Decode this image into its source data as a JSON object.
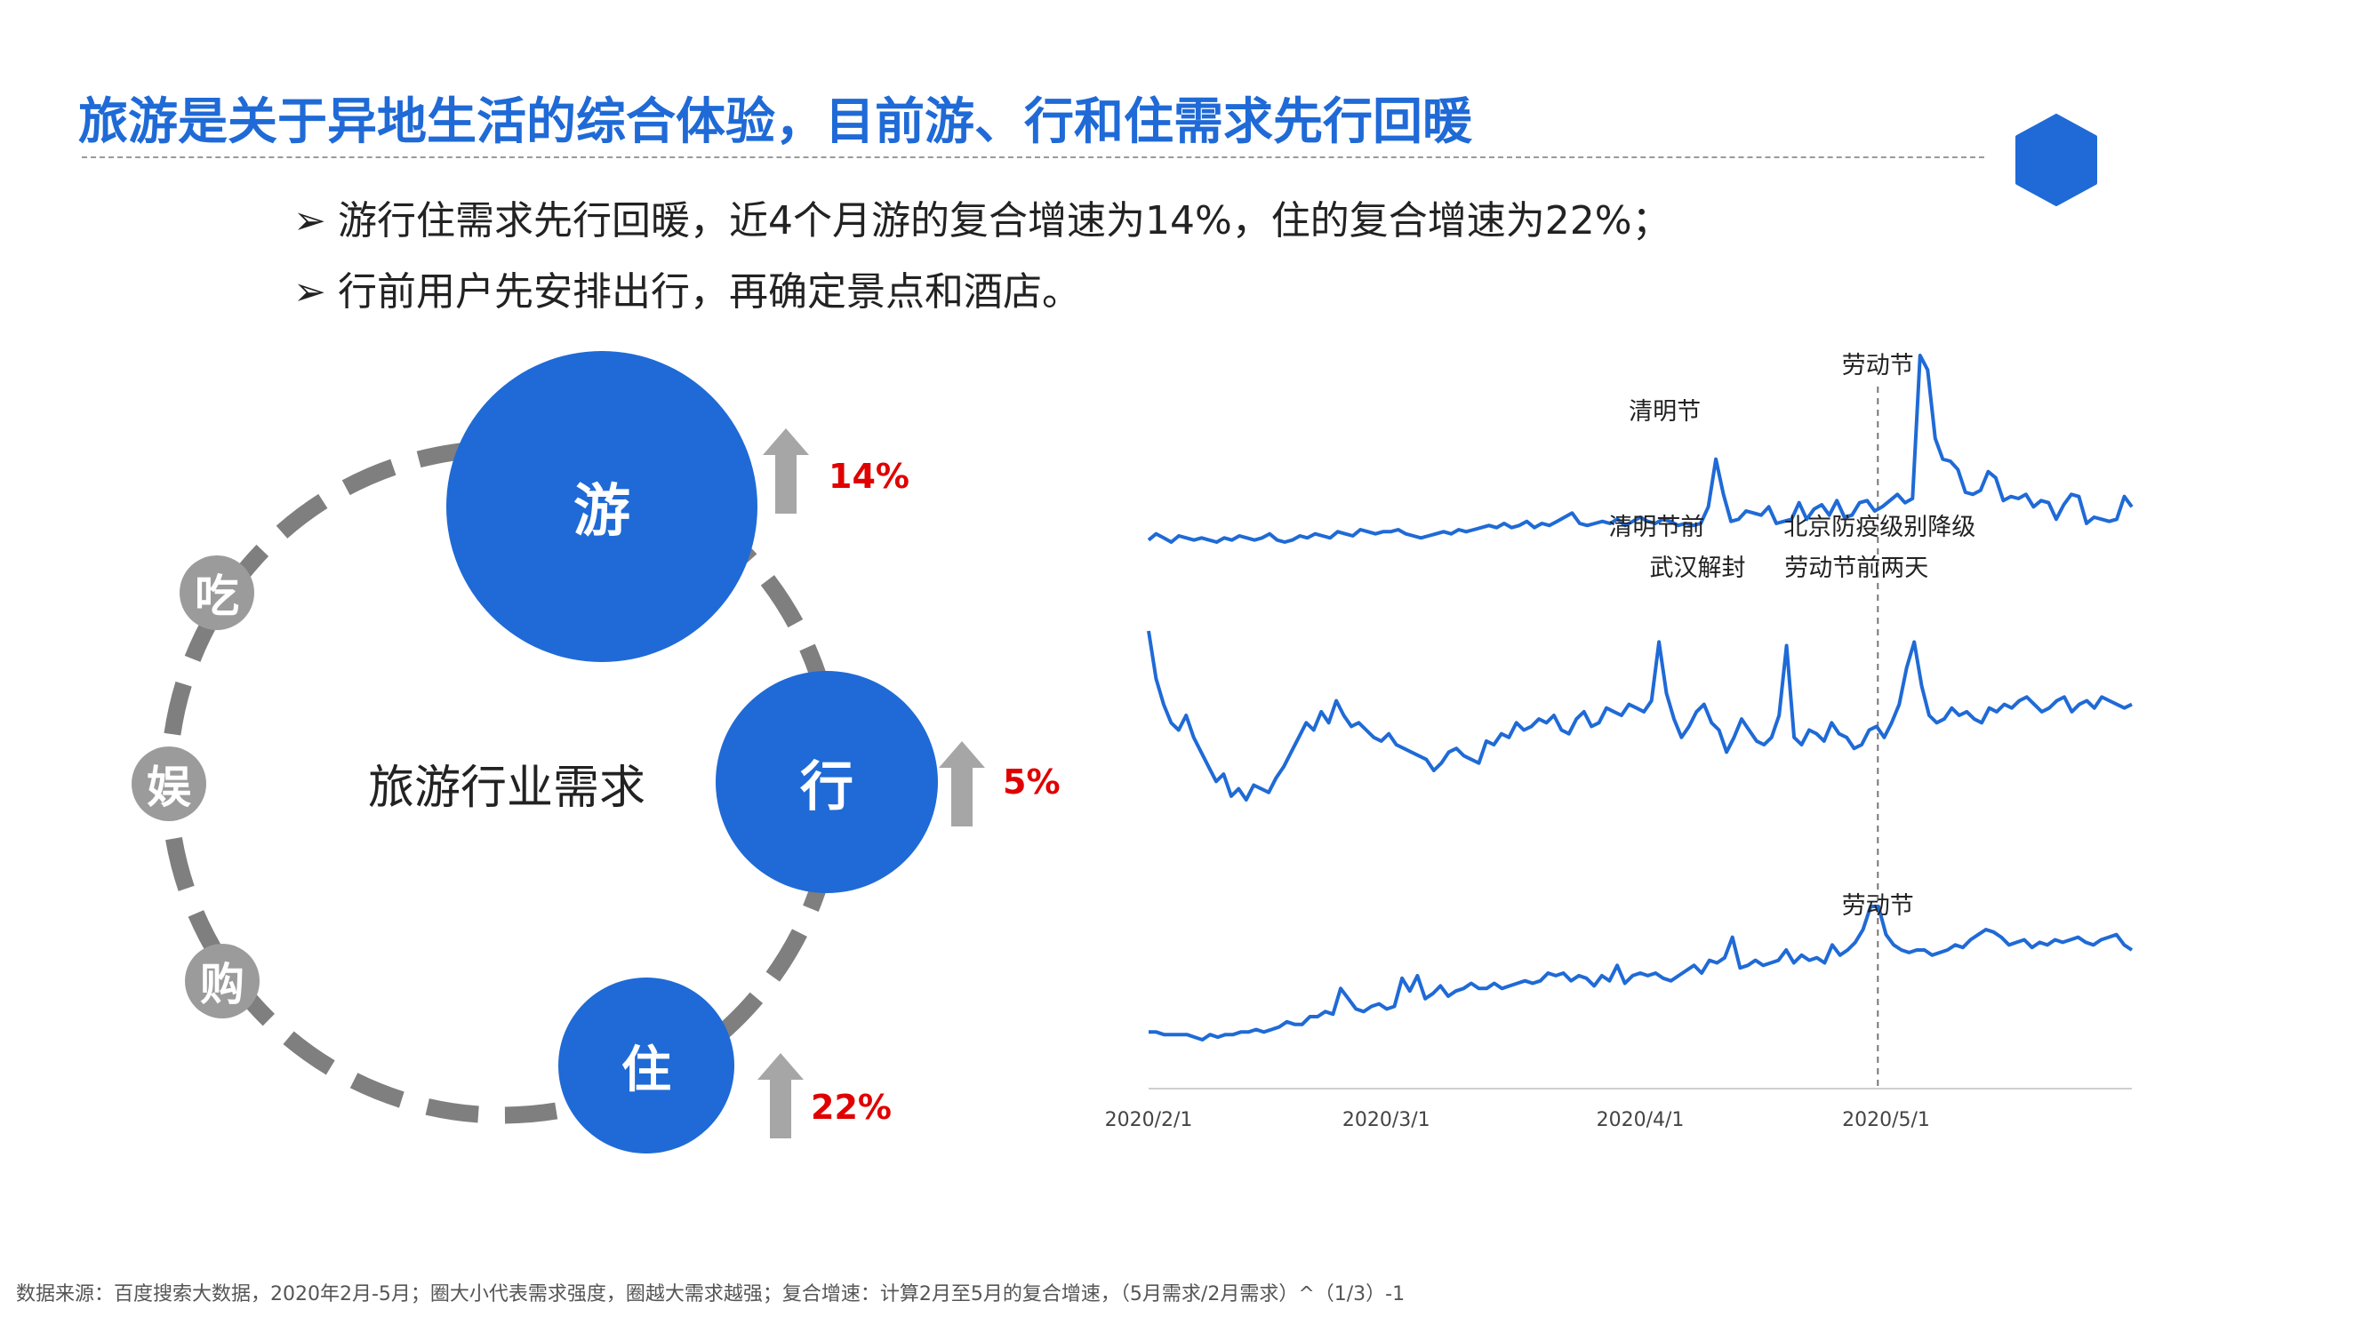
{
  "header": {
    "title": "旅游是关于异地生活的综合体验，目前游、行和住需求先行回暖",
    "logo_icon": "hexagon-icon"
  },
  "bullets": [
    {
      "marker": "➢",
      "text": "游行住需求先行回暖，近4个月游的复合增速为14%，住的复合增速为22%；"
    },
    {
      "marker": "➢",
      "text": "行前用户先安排出行，再确定景点和酒店。"
    }
  ],
  "diagram": {
    "center_label": "旅游行业需求",
    "big_nodes": [
      {
        "label": "游",
        "growth": "14%"
      },
      {
        "label": "行",
        "growth": "5%"
      },
      {
        "label": "住",
        "growth": "22%"
      }
    ],
    "small_nodes": [
      "吃",
      "娱",
      "购"
    ],
    "colors": {
      "big": "#1f6ad6",
      "small": "#9b9b9b",
      "arrow": "#a6a6a6",
      "growth": "#e00000"
    }
  },
  "chart_data": {
    "type": "line",
    "x_start": "2020/2/1",
    "x_end": "2020/5/31",
    "x_ticks": [
      "2020/2/1",
      "2020/3/1",
      "2020/4/1",
      "2020/5/1"
    ],
    "reference_line": {
      "x": "2020/4/30",
      "style": "dashed"
    },
    "line_color": "#1f6ad6",
    "series": [
      {
        "values": [
          6,
          9,
          7,
          5,
          8,
          7,
          6,
          7,
          6,
          5,
          7,
          6,
          8,
          7,
          6,
          7,
          9,
          6,
          5,
          6,
          8,
          7,
          9,
          8,
          7,
          10,
          9,
          8,
          11,
          10,
          9,
          10,
          10,
          11,
          9,
          8,
          7,
          8,
          9,
          10,
          9,
          11,
          10,
          11,
          12,
          13,
          12,
          14,
          12,
          13,
          15,
          12,
          14,
          13,
          15,
          17,
          19,
          14,
          13,
          14,
          15,
          14,
          16,
          13,
          15,
          17,
          15,
          14,
          16,
          15,
          13,
          14,
          13,
          14,
          22,
          45,
          28,
          15,
          16,
          20,
          19,
          18,
          22,
          14,
          15,
          16,
          24,
          16,
          21,
          23,
          18,
          25,
          17,
          18,
          24,
          25,
          20,
          22,
          25,
          28,
          24,
          26,
          95,
          88,
          55,
          45,
          44,
          40,
          29,
          28,
          30,
          39,
          36,
          25,
          27,
          26,
          28,
          22,
          25,
          24,
          16,
          23,
          28,
          27,
          14,
          17,
          16,
          15,
          16,
          27,
          22
        ],
        "annotations": [
          {
            "text": "清明节",
            "x": "2020/4/4"
          },
          {
            "text": "劳动节",
            "x": "2020/4/30"
          }
        ]
      },
      {
        "values": [
          55,
          42,
          35,
          30,
          28,
          32,
          26,
          22,
          18,
          14,
          16,
          10,
          12,
          9,
          13,
          12,
          11,
          15,
          18,
          22,
          26,
          30,
          28,
          33,
          30,
          36,
          32,
          29,
          30,
          28,
          26,
          25,
          27,
          24,
          23,
          22,
          21,
          20,
          17,
          19,
          22,
          23,
          21,
          20,
          19,
          25,
          24,
          27,
          26,
          30,
          28,
          29,
          31,
          30,
          32,
          28,
          27,
          31,
          33,
          29,
          30,
          34,
          33,
          32,
          35,
          34,
          33,
          36,
          52,
          38,
          31,
          26,
          29,
          33,
          35,
          30,
          28,
          22,
          26,
          31,
          28,
          25,
          24,
          26,
          32,
          51,
          26,
          24,
          28,
          27,
          25,
          30,
          27,
          26,
          23,
          24,
          28,
          29,
          26,
          30,
          35,
          45,
          52,
          40,
          32,
          30,
          31,
          34,
          32,
          33,
          31,
          30,
          34,
          33,
          35,
          34,
          36,
          37,
          35,
          33,
          34,
          36,
          37,
          33,
          35,
          36,
          34,
          37,
          36,
          35,
          34,
          35
        ],
        "annotations": [
          {
            "text": "清明节前",
            "x": "2020/4/3"
          },
          {
            "text": "武汉解封",
            "x": "2020/4/8"
          },
          {
            "text": "北京防疫级别降级",
            "x": "2020/4/30",
            "line": 1
          },
          {
            "text": "劳动节前两天",
            "x": "2020/4/29",
            "line": 2
          }
        ]
      },
      {
        "values": [
          8,
          8,
          7,
          7,
          7,
          7,
          6,
          5,
          7,
          6,
          7,
          7,
          8,
          8,
          9,
          8,
          9,
          10,
          12,
          11,
          11,
          14,
          14,
          16,
          15,
          25,
          21,
          17,
          16,
          18,
          19,
          17,
          18,
          29,
          24,
          30,
          21,
          23,
          26,
          22,
          24,
          25,
          27,
          25,
          25,
          27,
          25,
          26,
          27,
          28,
          27,
          28,
          31,
          30,
          31,
          28,
          30,
          29,
          26,
          30,
          28,
          34,
          27,
          30,
          31,
          30,
          31,
          29,
          28,
          30,
          32,
          34,
          31,
          36,
          35,
          37,
          45,
          33,
          34,
          36,
          34,
          35,
          36,
          40,
          35,
          38,
          36,
          37,
          35,
          42,
          38,
          40,
          43,
          48,
          57,
          57,
          46,
          42,
          40,
          39,
          40,
          40,
          38,
          39,
          40,
          42,
          41,
          44,
          46,
          48,
          47,
          45,
          42,
          43,
          44,
          41,
          43,
          42,
          44,
          43,
          44,
          45,
          43,
          42,
          44,
          45,
          46,
          42,
          40
        ]
      },
      {
        "annotations": [
          {
            "text": "劳动节",
            "x": "2020/4/30"
          }
        ]
      }
    ]
  },
  "footnote": "数据来源：百度搜索大数据，2020年2月-5月；圈大小代表需求强度，圈越大需求越强；复合增速：计算2月至5月的复合增速，（5月需求/2月需求）^（1/3）-1"
}
